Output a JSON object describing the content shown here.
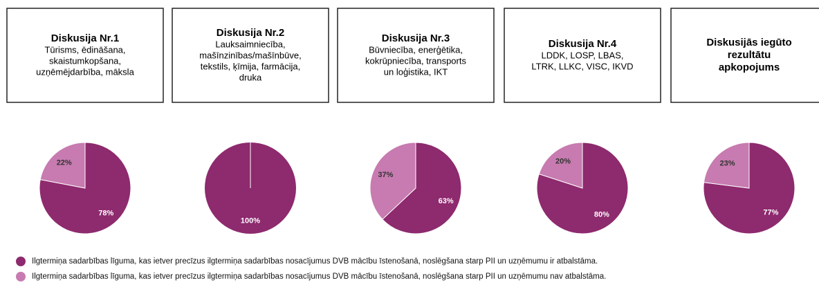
{
  "legend": [
    {
      "name": "Ilgtermiņa sadarbības līguma, kas ietver precīzus ilgtermiņa sadarbības nosacījumus DVB mācību īstenošanā, noslēgšana starp PII un uzņēmumu ir atbalstāma.",
      "color": "#8e2a6e"
    },
    {
      "name": "Ilgtermiņa sadarbības līguma, kas ietver precīzus ilgtermiņa sadarbības nosacījumus DVB mācību īstenošanā, noslēgšana starp PII un uzņēmumu nav atbalstāma.",
      "color": "#c77bb0"
    }
  ],
  "chart_data": [
    {
      "type": "pie",
      "title": [
        "Diskusija Nr.1"
      ],
      "subtitle": [
        "Tūrisms, ēdināšana,",
        "skaistumkopšana,",
        "uzņēmējdarbība, māksla"
      ],
      "values": [
        78,
        22
      ],
      "value_labels": [
        "78%",
        "22%"
      ]
    },
    {
      "type": "pie",
      "title": [
        "Diskusija Nr.2"
      ],
      "subtitle": [
        "Lauksaimniecība,",
        "mašīnzinības/mašīnbūve,",
        "tekstils, ķīmija, farmācija,",
        "druka"
      ],
      "values": [
        100
      ],
      "value_labels": [
        "100%"
      ]
    },
    {
      "type": "pie",
      "title": [
        "Diskusija Nr.3"
      ],
      "subtitle": [
        "Būvniecība, enerģētika,",
        "kokrūpniecība, transports",
        "un loģistika, IKT"
      ],
      "values": [
        63,
        37
      ],
      "value_labels": [
        "63%",
        "37%"
      ]
    },
    {
      "type": "pie",
      "title": [
        "Diskusija Nr.4"
      ],
      "subtitle": [
        "LDDK, LOSP, LBAS,",
        "LTRK, LLKC, VISC, IKVD"
      ],
      "values": [
        80,
        20
      ],
      "value_labels": [
        "80%",
        "20%"
      ]
    },
    {
      "type": "pie",
      "title": [
        "Diskusijās iegūto",
        "rezultātu",
        "apkopojums"
      ],
      "values": [
        77,
        23
      ],
      "value_labels": [
        "77%",
        "23%"
      ]
    }
  ]
}
